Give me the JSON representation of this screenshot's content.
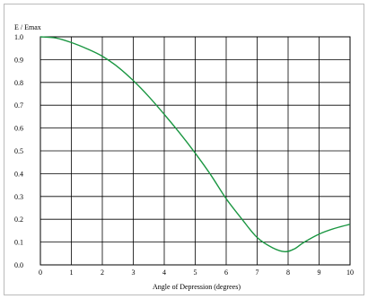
{
  "chart_data": {
    "type": "line",
    "ylabel": "E / Emax",
    "xlabel": "Angle of Depression (degrees)",
    "xlim": [
      0,
      10
    ],
    "ylim": [
      0,
      1.0
    ],
    "x_ticks": [
      "0",
      "1",
      "2",
      "3",
      "4",
      "5",
      "6",
      "7",
      "8",
      "9",
      "10"
    ],
    "y_ticks": [
      "0.0",
      "0.1",
      "0.2",
      "0.3",
      "0.4",
      "0.5",
      "0.6",
      "0.7",
      "0.8",
      "0.9",
      "1.0"
    ],
    "grid": true,
    "series": [
      {
        "color": "#1a9641",
        "x": [
          0,
          0.5,
          1,
          1.5,
          2,
          2.5,
          3,
          3.5,
          4,
          4.5,
          5,
          5.5,
          6,
          6.5,
          7,
          7.5,
          7.9,
          8.2,
          8.5,
          9,
          9.5,
          10
        ],
        "y": [
          1.0,
          0.995,
          0.975,
          0.948,
          0.915,
          0.868,
          0.808,
          0.738,
          0.66,
          0.578,
          0.49,
          0.395,
          0.29,
          0.202,
          0.12,
          0.075,
          0.058,
          0.07,
          0.098,
          0.135,
          0.16,
          0.178
        ]
      }
    ]
  }
}
